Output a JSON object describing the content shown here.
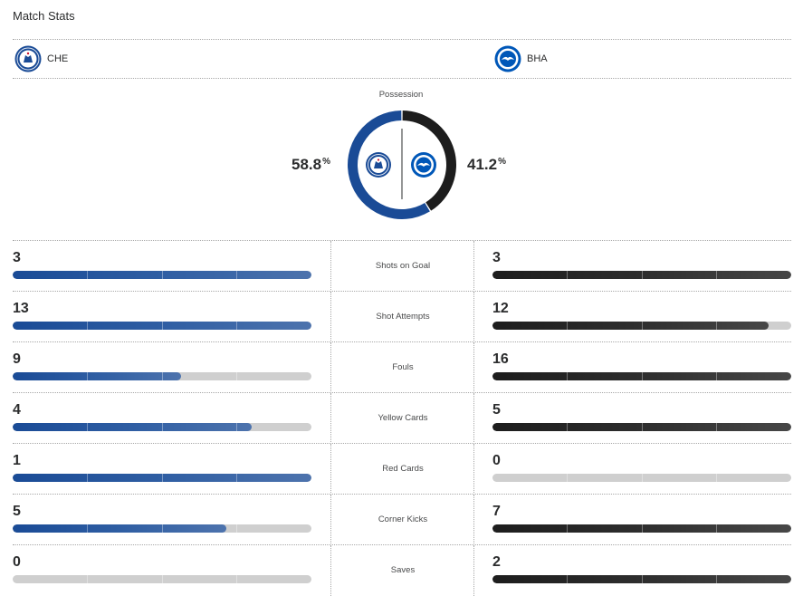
{
  "header": {
    "title": "Match Stats"
  },
  "teams": {
    "home": {
      "abbr": "CHE",
      "color": "#1a4b96",
      "icon": "chelsea-crest-icon"
    },
    "away": {
      "abbr": "BHA",
      "color": "#1d1d1d",
      "icon": "brighton-crest-icon"
    }
  },
  "possession": {
    "label": "Possession",
    "home_value": "58.8",
    "away_value": "41.2",
    "unit": "%"
  },
  "stats": [
    {
      "label": "Shots on Goal",
      "home": "3",
      "away": "3",
      "home_fill": 1.0,
      "away_fill": 1.0
    },
    {
      "label": "Shot Attempts",
      "home": "13",
      "away": "12",
      "home_fill": 1.0,
      "away_fill": 0.923
    },
    {
      "label": "Fouls",
      "home": "9",
      "away": "16",
      "home_fill": 0.5625,
      "away_fill": 1.0
    },
    {
      "label": "Yellow Cards",
      "home": "4",
      "away": "5",
      "home_fill": 0.8,
      "away_fill": 1.0
    },
    {
      "label": "Red Cards",
      "home": "1",
      "away": "0",
      "home_fill": 1.0,
      "away_fill": 0.0
    },
    {
      "label": "Corner Kicks",
      "home": "5",
      "away": "7",
      "home_fill": 0.714,
      "away_fill": 1.0
    },
    {
      "label": "Saves",
      "home": "0",
      "away": "2",
      "home_fill": 0.0,
      "away_fill": 1.0
    }
  ]
}
